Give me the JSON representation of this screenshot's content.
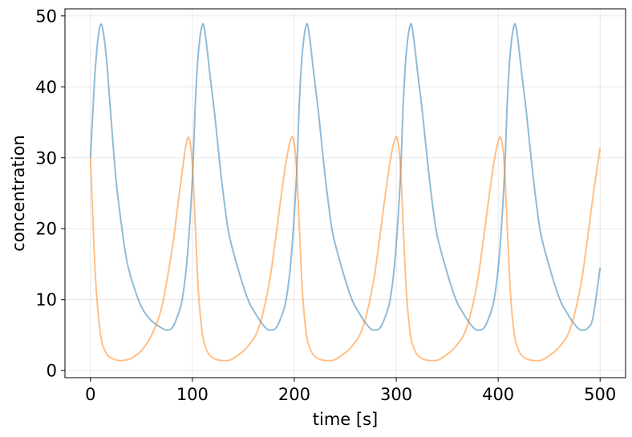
{
  "chart_data": {
    "type": "line",
    "xlabel": "time [s]",
    "ylabel": "concentration",
    "xlim": [
      -25,
      525
    ],
    "ylim": [
      -1,
      51
    ],
    "xticks": [
      0,
      100,
      200,
      300,
      400,
      500
    ],
    "xtick_labels": [
      "0",
      "100",
      "200",
      "300",
      "400",
      "500"
    ],
    "yticks": [
      0,
      10,
      20,
      30,
      40,
      50
    ],
    "ytick_labels": [
      "0",
      "10",
      "20",
      "30",
      "40",
      "50"
    ],
    "grid": true,
    "series": [
      {
        "color": "#1f77b4",
        "x": [
          0,
          5,
          10,
          15,
          20,
          25,
          30,
          35,
          40,
          50,
          60,
          70,
          75,
          80,
          85,
          90,
          95,
          100,
          103,
          106,
          110,
          113,
          117,
          122,
          127,
          132,
          137,
          152,
          162,
          172,
          177,
          182,
          187,
          192,
          197,
          202,
          205,
          208,
          212,
          215,
          219,
          224,
          229,
          234,
          239,
          254,
          264,
          274,
          279,
          284,
          289,
          294,
          299,
          304,
          307,
          310,
          314,
          317,
          321,
          326,
          331,
          336,
          341,
          356,
          366,
          376,
          381,
          386,
          391,
          396,
          401,
          406,
          409,
          412,
          416,
          419,
          423,
          428,
          433,
          438,
          443,
          458,
          468,
          478,
          483,
          488,
          493,
          500
        ],
        "y": [
          30,
          43,
          48.8,
          45,
          36,
          27,
          21,
          16,
          13,
          9,
          7,
          6,
          5.7,
          6,
          7.5,
          10,
          16,
          27,
          38,
          45,
          48.8,
          47,
          42,
          36,
          29,
          23,
          18.5,
          11,
          8,
          6,
          5.7,
          6,
          7.5,
          10,
          16,
          27,
          38,
          45,
          48.8,
          47,
          42,
          36,
          29,
          23,
          18.5,
          11,
          8,
          6,
          5.7,
          6,
          7.5,
          10,
          16,
          27,
          38,
          45,
          48.8,
          47,
          42,
          36,
          29,
          23,
          18.5,
          11,
          8,
          6,
          5.7,
          6,
          7.5,
          10,
          16,
          27,
          38,
          45,
          48.8,
          47,
          42,
          36,
          29,
          23,
          18.5,
          11,
          8,
          6,
          5.7,
          6,
          7.5,
          14.5
        ]
      },
      {
        "color": "#ff7f0e",
        "x": [
          0,
          5,
          10,
          15,
          20,
          25,
          30,
          35,
          40,
          45,
          50,
          60,
          70,
          80,
          85,
          90,
          94,
          97,
          100,
          103,
          106,
          110,
          115,
          120,
          125,
          130,
          137,
          145,
          155,
          165,
          175,
          182,
          187,
          192,
          196,
          199,
          202,
          205,
          208,
          212,
          217,
          222,
          227,
          232,
          239,
          247,
          257,
          267,
          277,
          284,
          289,
          294,
          298,
          301,
          304,
          307,
          310,
          314,
          319,
          324,
          329,
          334,
          341,
          349,
          359,
          369,
          379,
          386,
          391,
          396,
          400,
          403,
          406,
          409,
          412,
          416,
          421,
          426,
          431,
          436,
          443,
          451,
          461,
          471,
          481,
          488,
          493,
          500
        ],
        "y": [
          30,
          13,
          5,
          2.6,
          1.8,
          1.5,
          1.4,
          1.5,
          1.7,
          2.2,
          2.8,
          5,
          9,
          17,
          22.5,
          28,
          32,
          32.7,
          29,
          20,
          11,
          5,
          2.6,
          1.8,
          1.5,
          1.4,
          1.5,
          2.2,
          3.5,
          6,
          12,
          19,
          24.5,
          29.5,
          32.3,
          32.7,
          29,
          20,
          11,
          5,
          2.6,
          1.8,
          1.5,
          1.4,
          1.5,
          2.2,
          3.5,
          6,
          12,
          19,
          24.5,
          29.5,
          32.3,
          32.7,
          29,
          20,
          11,
          5,
          2.6,
          1.8,
          1.5,
          1.4,
          1.5,
          2.2,
          3.5,
          6,
          12,
          19,
          24.5,
          29.5,
          32.3,
          32.7,
          29,
          20,
          11,
          5,
          2.6,
          1.8,
          1.5,
          1.4,
          1.5,
          2.2,
          3.5,
          6,
          12,
          19,
          24.5,
          31.4
        ]
      }
    ]
  }
}
